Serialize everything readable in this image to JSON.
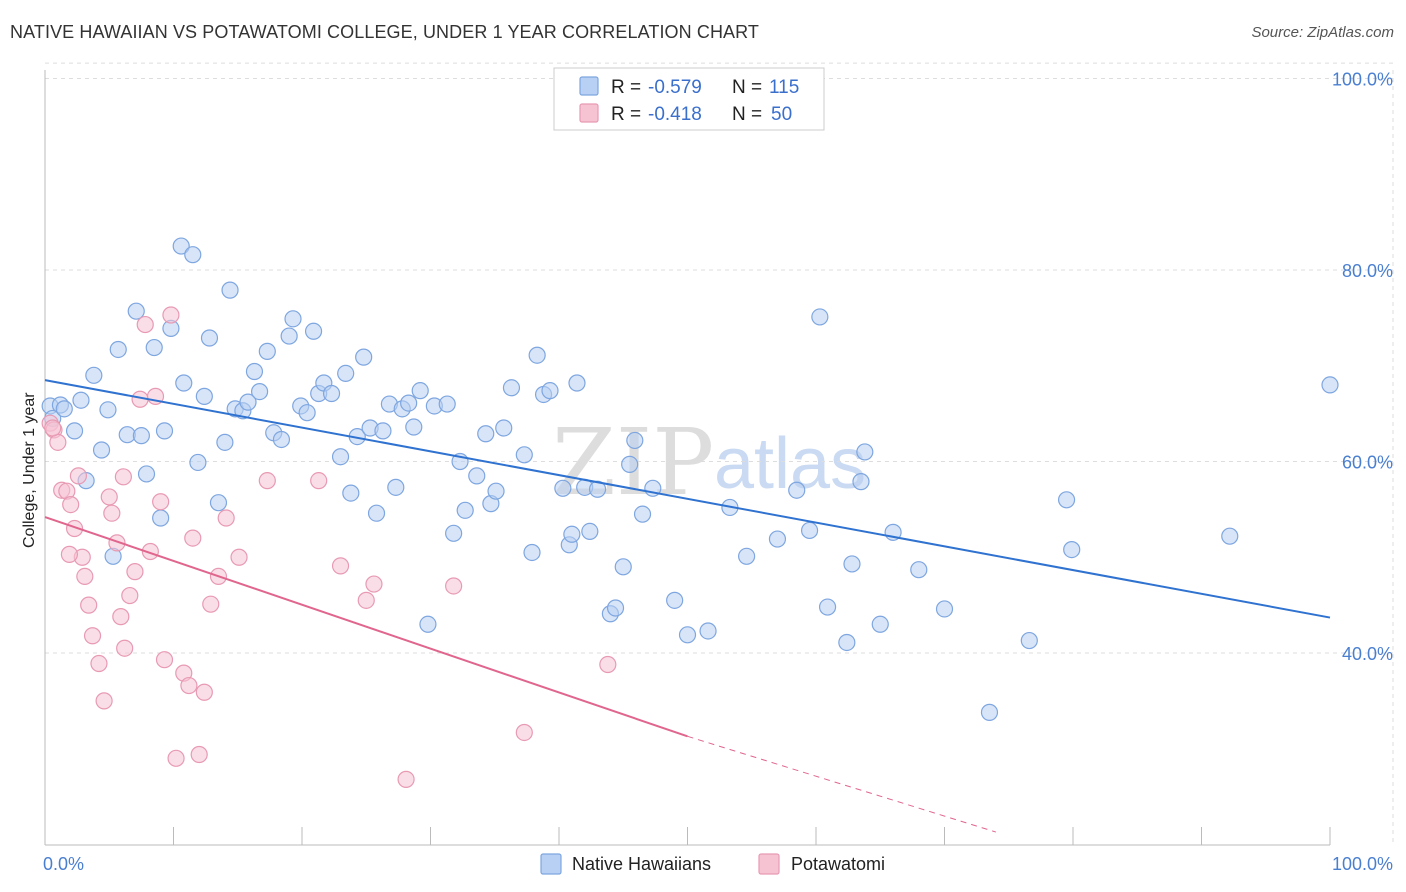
{
  "title": "NATIVE HAWAIIAN VS POTAWATOMI COLLEGE, UNDER 1 YEAR CORRELATION CHART",
  "source": "Source: ZipAtlas.com",
  "watermark": {
    "zip": "ZIP",
    "atlas": "atlas"
  },
  "colors": {
    "blue_fill": "#b8d0f3",
    "blue_stroke": "#7ea6e0",
    "blue_line": "#2f72d0",
    "pink_fill": "#f6c3d3",
    "pink_stroke": "#e89ab3",
    "pink_line": "#e0668e",
    "grid": "#dddddd",
    "tick_text": "#4a7fd0"
  },
  "legend_box": {
    "rows": [
      {
        "r_label": "R =",
        "r_value": "-0.579",
        "n_label": "N =",
        "n_value": "115"
      },
      {
        "r_label": "R =",
        "r_value": "-0.418",
        "n_label": "N =",
        "n_value": "50"
      }
    ]
  },
  "chart_data": {
    "type": "scatter",
    "xlabel": "",
    "ylabel": "College, Under 1 year",
    "xlim": [
      0,
      100
    ],
    "ylim": [
      20,
      102
    ],
    "x_tick_labels": [
      {
        "value": 0,
        "label": "0.0%"
      },
      {
        "value": 100,
        "label": "100.0%"
      }
    ],
    "y_tick_labels": [
      {
        "value": 40,
        "label": "40.0%"
      },
      {
        "value": 60,
        "label": "60.0%"
      },
      {
        "value": 80,
        "label": "80.0%"
      },
      {
        "value": 100,
        "label": "100.0%"
      }
    ],
    "x_minor_ticks": [
      0,
      10,
      20,
      30,
      40,
      50,
      60,
      70,
      80,
      90,
      100
    ],
    "grid": true,
    "legend_position": "bottom",
    "series": [
      {
        "name": "Native Hawaiians",
        "color": "#b8d0f3",
        "trend": {
          "x": [
            0,
            100
          ],
          "y": [
            68.5,
            43.7
          ],
          "dashed_from": null
        },
        "points": [
          [
            0.4,
            65.8
          ],
          [
            0.6,
            64.5
          ],
          [
            1.2,
            65.9
          ],
          [
            1.5,
            65.5
          ],
          [
            2.3,
            63.2
          ],
          [
            2.8,
            66.4
          ],
          [
            3.2,
            58.0
          ],
          [
            3.8,
            69.0
          ],
          [
            4.4,
            61.2
          ],
          [
            4.9,
            65.4
          ],
          [
            5.3,
            50.1
          ],
          [
            5.7,
            71.7
          ],
          [
            6.4,
            62.8
          ],
          [
            7.1,
            75.7
          ],
          [
            7.5,
            62.7
          ],
          [
            7.9,
            58.7
          ],
          [
            8.5,
            71.9
          ],
          [
            9.0,
            54.1
          ],
          [
            9.3,
            63.2
          ],
          [
            9.8,
            73.9
          ],
          [
            10.6,
            82.5
          ],
          [
            10.8,
            68.2
          ],
          [
            11.5,
            81.6
          ],
          [
            11.9,
            59.9
          ],
          [
            12.4,
            66.8
          ],
          [
            12.8,
            72.9
          ],
          [
            13.5,
            55.7
          ],
          [
            14.0,
            62.0
          ],
          [
            14.4,
            77.9
          ],
          [
            14.8,
            65.5
          ],
          [
            15.4,
            65.3
          ],
          [
            15.8,
            66.2
          ],
          [
            16.3,
            69.4
          ],
          [
            16.7,
            67.3
          ],
          [
            17.3,
            71.5
          ],
          [
            17.8,
            63.0
          ],
          [
            18.4,
            62.3
          ],
          [
            19.0,
            73.1
          ],
          [
            19.3,
            74.9
          ],
          [
            19.9,
            65.8
          ],
          [
            20.4,
            65.1
          ],
          [
            20.9,
            73.6
          ],
          [
            21.3,
            67.1
          ],
          [
            21.7,
            68.2
          ],
          [
            22.3,
            67.1
          ],
          [
            23.0,
            60.5
          ],
          [
            23.4,
            69.2
          ],
          [
            23.8,
            56.7
          ],
          [
            24.3,
            62.6
          ],
          [
            24.8,
            70.9
          ],
          [
            25.3,
            63.5
          ],
          [
            25.8,
            54.6
          ],
          [
            26.3,
            63.2
          ],
          [
            26.8,
            66.0
          ],
          [
            27.3,
            57.3
          ],
          [
            27.8,
            65.5
          ],
          [
            28.3,
            66.1
          ],
          [
            28.7,
            63.6
          ],
          [
            29.2,
            67.4
          ],
          [
            29.8,
            43.0
          ],
          [
            30.3,
            65.8
          ],
          [
            31.3,
            66.0
          ],
          [
            31.8,
            52.5
          ],
          [
            32.3,
            60.0
          ],
          [
            32.7,
            54.9
          ],
          [
            33.6,
            58.5
          ],
          [
            34.3,
            62.9
          ],
          [
            34.7,
            55.6
          ],
          [
            35.1,
            56.9
          ],
          [
            35.7,
            63.5
          ],
          [
            36.3,
            67.7
          ],
          [
            37.3,
            60.7
          ],
          [
            37.9,
            50.5
          ],
          [
            38.3,
            71.1
          ],
          [
            38.8,
            67.0
          ],
          [
            39.3,
            67.4
          ],
          [
            40.3,
            57.2
          ],
          [
            40.8,
            51.3
          ],
          [
            41.0,
            52.4
          ],
          [
            41.4,
            68.2
          ],
          [
            42.0,
            57.3
          ],
          [
            42.4,
            52.7
          ],
          [
            43.0,
            57.1
          ],
          [
            44.0,
            44.1
          ],
          [
            44.4,
            44.7
          ],
          [
            45.0,
            49.0
          ],
          [
            45.5,
            59.7
          ],
          [
            45.9,
            62.2
          ],
          [
            46.5,
            54.5
          ],
          [
            47.3,
            57.2
          ],
          [
            49.0,
            45.5
          ],
          [
            50.0,
            41.9
          ],
          [
            51.6,
            42.3
          ],
          [
            53.3,
            55.2
          ],
          [
            54.6,
            50.1
          ],
          [
            57.0,
            51.9
          ],
          [
            58.5,
            57.0
          ],
          [
            59.5,
            52.8
          ],
          [
            60.3,
            75.1
          ],
          [
            60.9,
            44.8
          ],
          [
            62.4,
            41.1
          ],
          [
            62.8,
            49.3
          ],
          [
            63.5,
            57.9
          ],
          [
            63.8,
            61.0
          ],
          [
            65.0,
            43.0
          ],
          [
            66.0,
            52.6
          ],
          [
            68.0,
            48.7
          ],
          [
            70.0,
            44.6
          ],
          [
            73.5,
            33.8
          ],
          [
            76.6,
            41.3
          ],
          [
            79.5,
            56.0
          ],
          [
            79.9,
            50.8
          ],
          [
            92.2,
            52.2
          ],
          [
            100.0,
            68.0
          ]
        ]
      },
      {
        "name": "Potawatomi",
        "color": "#f6c3d3",
        "trend": {
          "x": [
            0,
            50,
            74
          ],
          "y": [
            54.2,
            31.3,
            21.3
          ],
          "dashed_from": 50
        },
        "points": [
          [
            0.4,
            64.0
          ],
          [
            0.7,
            63.3
          ],
          [
            1.0,
            62.0
          ],
          [
            1.3,
            57.0
          ],
          [
            1.7,
            56.9
          ],
          [
            2.0,
            55.5
          ],
          [
            2.3,
            53.0
          ],
          [
            2.6,
            58.5
          ],
          [
            2.9,
            50.0
          ],
          [
            3.1,
            48.0
          ],
          [
            3.4,
            45.0
          ],
          [
            3.7,
            41.8
          ],
          [
            4.2,
            38.9
          ],
          [
            4.6,
            35.0
          ],
          [
            5.0,
            56.3
          ],
          [
            5.2,
            54.6
          ],
          [
            5.6,
            51.5
          ],
          [
            5.9,
            43.8
          ],
          [
            6.2,
            40.5
          ],
          [
            6.6,
            46.0
          ],
          [
            7.0,
            48.5
          ],
          [
            7.4,
            66.5
          ],
          [
            7.8,
            74.3
          ],
          [
            8.2,
            50.6
          ],
          [
            8.6,
            66.8
          ],
          [
            9.0,
            55.8
          ],
          [
            9.3,
            39.3
          ],
          [
            9.8,
            75.3
          ],
          [
            10.2,
            29.0
          ],
          [
            10.8,
            37.9
          ],
          [
            11.2,
            36.6
          ],
          [
            11.5,
            52.0
          ],
          [
            12.0,
            29.4
          ],
          [
            12.4,
            35.9
          ],
          [
            12.9,
            45.1
          ],
          [
            13.5,
            48.0
          ],
          [
            14.1,
            54.1
          ],
          [
            15.1,
            50.0
          ],
          [
            21.3,
            58.0
          ],
          [
            23.0,
            49.1
          ],
          [
            25.0,
            45.5
          ],
          [
            25.6,
            47.2
          ],
          [
            28.1,
            26.8
          ],
          [
            31.8,
            47.0
          ],
          [
            37.3,
            31.7
          ],
          [
            43.8,
            38.8
          ],
          [
            1.9,
            50.3
          ],
          [
            6.1,
            58.4
          ],
          [
            0.6,
            63.5
          ],
          [
            17.3,
            58.0
          ]
        ]
      }
    ]
  }
}
